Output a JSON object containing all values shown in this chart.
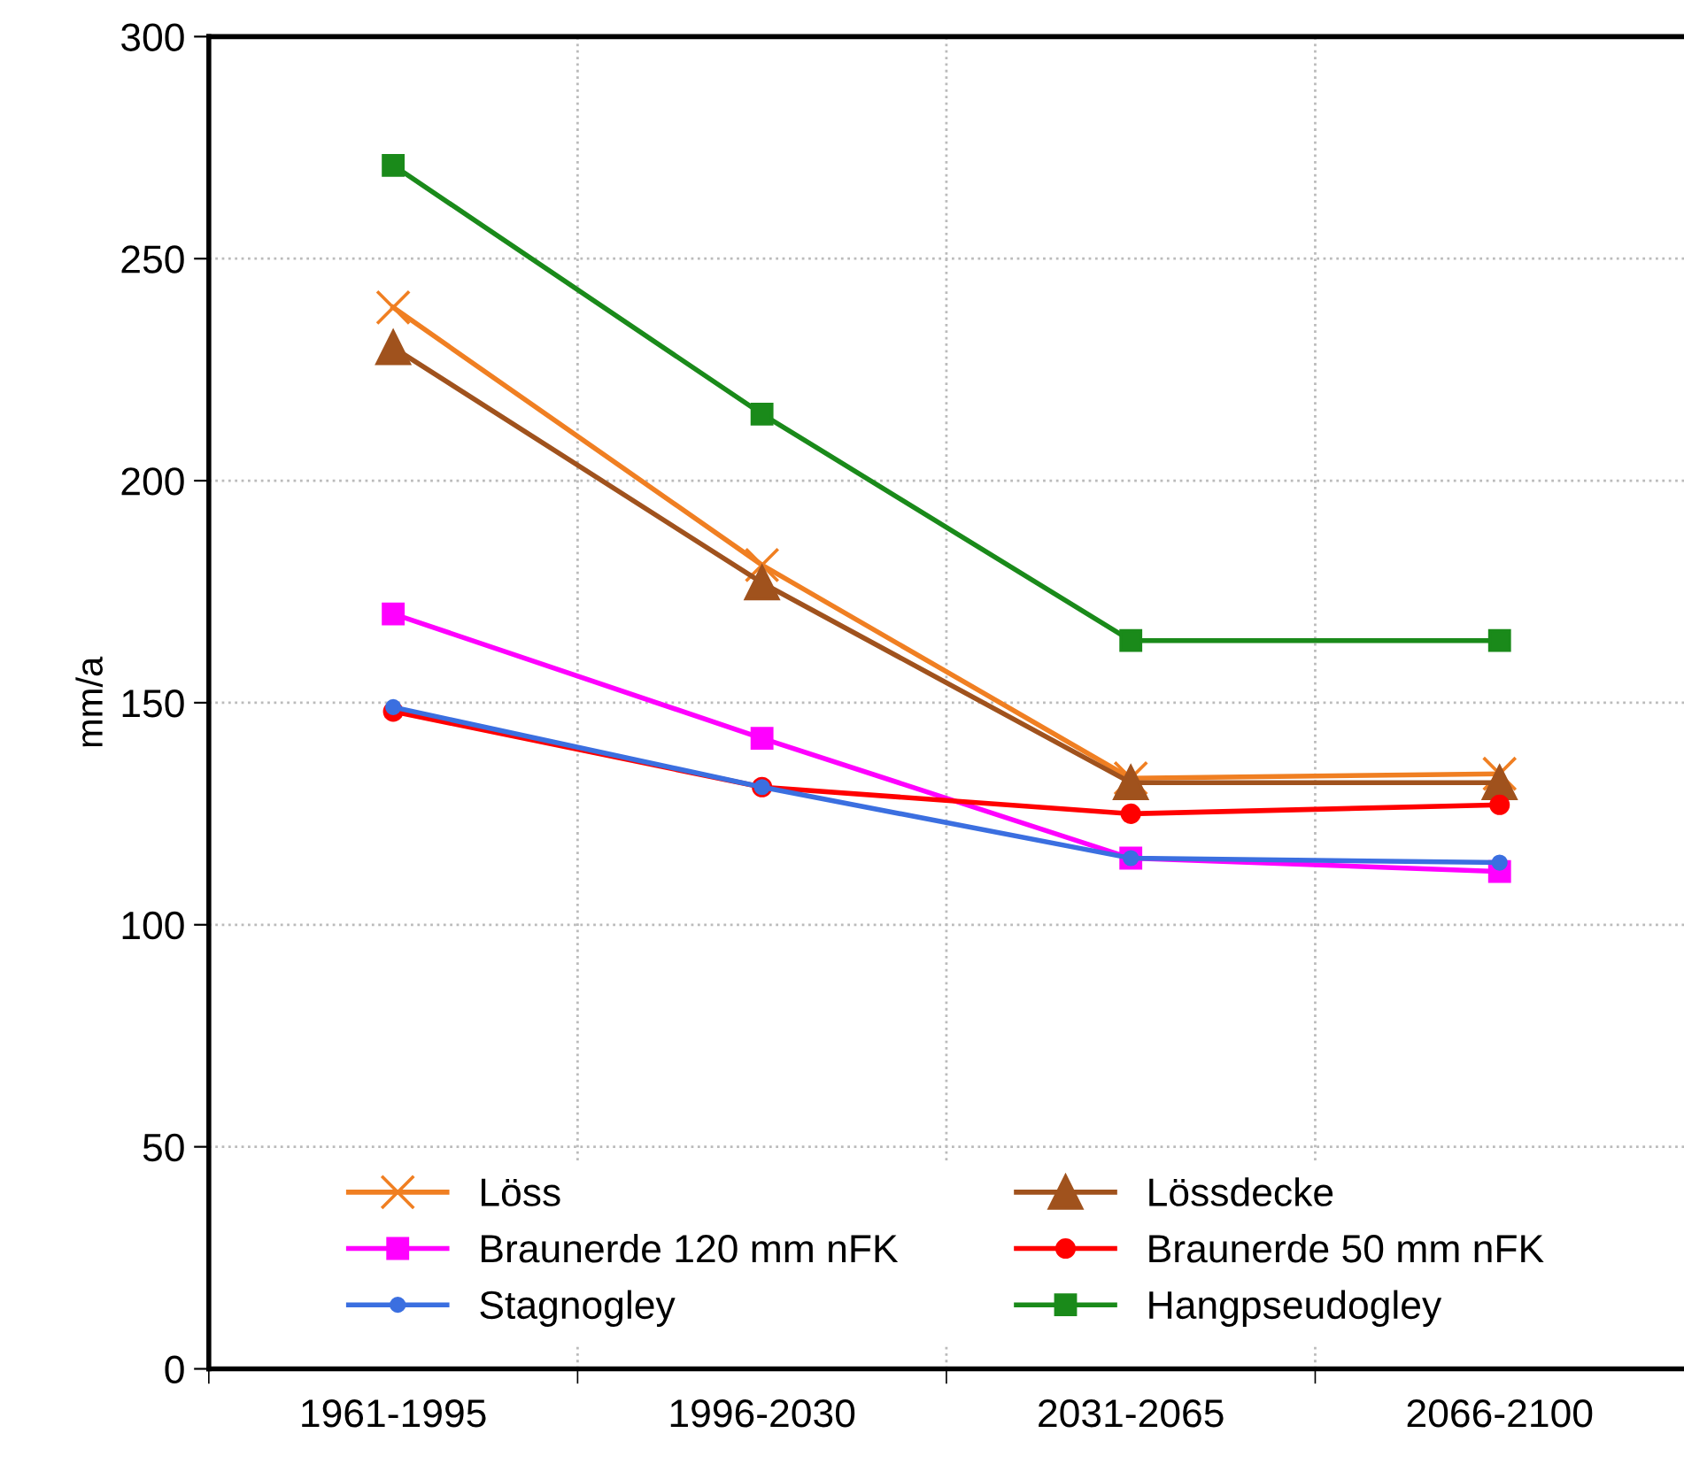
{
  "chart_data": {
    "type": "line",
    "ylabel": "mm/a",
    "categories": [
      "1961-1995",
      "1996-2030",
      "2031-2065",
      "2066-2100"
    ],
    "ylim": [
      0,
      300
    ],
    "yticks": [
      0,
      50,
      100,
      150,
      200,
      250,
      300
    ],
    "grid": true,
    "legend": "bottom",
    "line_style": "solid",
    "series": [
      {
        "name": "Löss",
        "color": "#f07f22",
        "marker": "cross",
        "values": [
          239,
          181,
          133,
          134
        ]
      },
      {
        "name": "Lössdecke",
        "color": "#a0521d",
        "marker": "triangle",
        "values": [
          230,
          177,
          132,
          132
        ]
      },
      {
        "name": "Braunerde 120 mm nFK",
        "color": "#ff00ff",
        "marker": "square",
        "values": [
          170,
          142,
          115,
          112
        ]
      },
      {
        "name": "Braunerde 50 mm nFK",
        "color": "#ff0000",
        "marker": "circle",
        "values": [
          148,
          131,
          125,
          127
        ]
      },
      {
        "name": "Stagnogley",
        "color": "#3b6fe0",
        "marker": "circle",
        "values": [
          149,
          131,
          115,
          114
        ]
      },
      {
        "name": "Hangpseudogley",
        "color": "#1a8a1a",
        "marker": "square",
        "values": [
          271,
          215,
          164,
          164
        ]
      }
    ]
  }
}
